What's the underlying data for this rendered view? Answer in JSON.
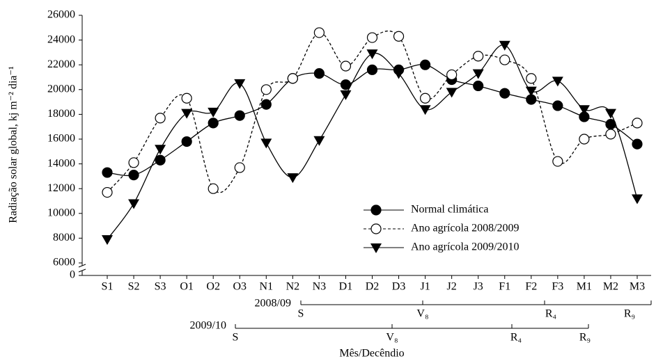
{
  "chart_data": {
    "type": "line",
    "y_label": "Radiação solar global, kj m⁻² dia⁻¹",
    "x_label": "Mês/Decêndio",
    "categories": [
      "S1",
      "S2",
      "S3",
      "O1",
      "O2",
      "O3",
      "N1",
      "N2",
      "N3",
      "D1",
      "D2",
      "D3",
      "J1",
      "J2",
      "J3",
      "F1",
      "F2",
      "F3",
      "M1",
      "M2",
      "M3"
    ],
    "series": [
      {
        "name": "Normal climática",
        "color": "#000000",
        "marker": "filled-circle",
        "dashed": false,
        "values": [
          13300,
          13100,
          14300,
          15800,
          17300,
          17900,
          18800,
          20900,
          21300,
          20400,
          21600,
          21600,
          22000,
          20800,
          20300,
          19700,
          19200,
          18700,
          17800,
          17200,
          15600
        ]
      },
      {
        "name": "Ano agrícola 2008/2009",
        "color": "#000000",
        "marker": "open-circle",
        "dashed": true,
        "values": [
          11700,
          14100,
          17700,
          19300,
          12000,
          13700,
          20000,
          20900,
          24600,
          21900,
          24200,
          24300,
          19300,
          21200,
          22700,
          22400,
          20900,
          14200,
          16000,
          16400,
          17300
        ]
      },
      {
        "name": "Ano agrícola 2009/2010",
        "color": "#000000",
        "marker": "triangle-down",
        "dashed": false,
        "values": [
          7900,
          10800,
          15200,
          18100,
          18200,
          20500,
          15700,
          12900,
          15900,
          19600,
          22900,
          21300,
          18400,
          19800,
          21300,
          23600,
          19900,
          20700,
          18400,
          18100,
          11200
        ]
      }
    ],
    "ylim": [
      0,
      26000
    ],
    "axis_break": 6000,
    "yticks": [
      0,
      6000,
      8000,
      10000,
      12000,
      14000,
      16000,
      18000,
      20000,
      22000,
      24000,
      26000
    ],
    "legend": "lower-right",
    "stages": [
      {
        "season": "2008/09",
        "labels": [
          "S",
          "V₈",
          "R₄",
          "R₉"
        ]
      },
      {
        "season": "2009/10",
        "labels": [
          "S",
          "V₈",
          "R₄",
          "R₉"
        ]
      }
    ]
  }
}
